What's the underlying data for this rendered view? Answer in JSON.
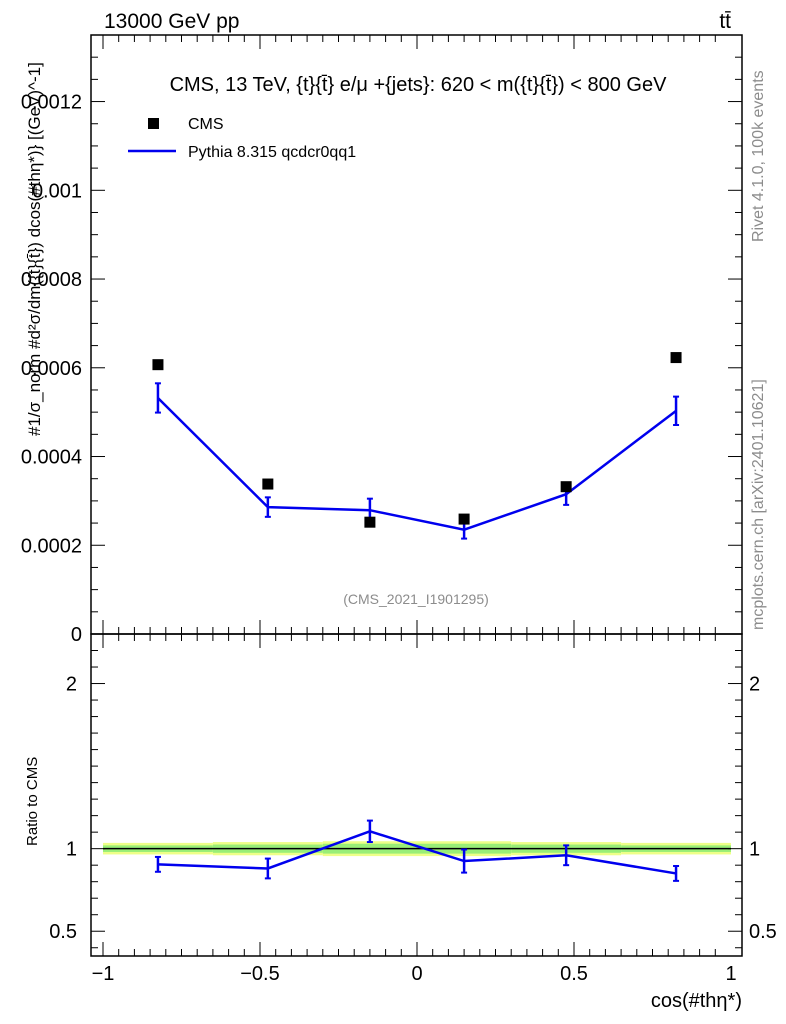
{
  "header": {
    "energy_label": "13000 GeV pp",
    "process_label": "tt̄"
  },
  "side_labels": {
    "rivet": "Rivet 4.1.0,  100k events",
    "source": "mcplots.cern.ch [arXiv:2401.10621]"
  },
  "watermark": "(CMS_2021_I1901295)",
  "colors": {
    "mc_line": "#0000ee",
    "data_marker": "#000000",
    "band_inner": "#99ee77",
    "band_outer": "#eeff88"
  },
  "chart_data": [
    {
      "type": "scatter",
      "panel": "main",
      "title": "CMS, 13 TeV, {t}{t̄} e/μ +{jets}: 620 < m({t}{t̄}) < 800 GeV",
      "xlabel": "cos(#thη*)",
      "ylabel": "#1/σ_norm #d²σ/dm({t}{t̄}) dcos(#thη*)} [(GeV)^-1]",
      "xlim": [
        -1.0,
        1.0
      ],
      "ylim": [
        0.0,
        0.00135
      ],
      "grid": false,
      "legend_position": "top-left",
      "yticks": [
        {
          "value": 0.0,
          "label": "0"
        },
        {
          "value": 0.0002,
          "label": "0.0002"
        },
        {
          "value": 0.0004,
          "label": "0.0004"
        },
        {
          "value": 0.0006,
          "label": "0.0006"
        },
        {
          "value": 0.0008,
          "label": "0.0008"
        },
        {
          "value": 0.001,
          "label": "0.001"
        },
        {
          "value": 0.0012,
          "label": "0.0012"
        }
      ],
      "x": [
        -0.825,
        -0.475,
        -0.15,
        0.15,
        0.475,
        0.825
      ],
      "series": [
        {
          "name": "CMS",
          "style": "markers",
          "values": [
            0.000607,
            0.000338,
            0.000252,
            0.000259,
            0.000332,
            0.000623
          ]
        },
        {
          "name": "Pythia 8.315 qcdcr0qq1",
          "style": "line",
          "values": [
            0.000532,
            0.000286,
            0.000279,
            0.000235,
            0.000315,
            0.000503
          ],
          "errors": [
            3.3e-05,
            2.2e-05,
            2.6e-05,
            2e-05,
            2.4e-05,
            3.2e-05
          ]
        }
      ]
    },
    {
      "type": "line",
      "panel": "ratio",
      "ylabel": "Ratio to CMS",
      "xlabel": "cos(#thη*)",
      "xlim": [
        -1.0,
        1.0
      ],
      "ylim": [
        0.35,
        2.3
      ],
      "grid": false,
      "xticks": [
        {
          "value": -1.0,
          "label": "−1"
        },
        {
          "value": -0.5,
          "label": "−0.5"
        },
        {
          "value": 0.0,
          "label": "0"
        },
        {
          "value": 0.5,
          "label": "0.5"
        },
        {
          "value": 1.0,
          "label": "1"
        }
      ],
      "yticks": [
        {
          "value": 0.5,
          "label": "0.5"
        },
        {
          "value": 1.0,
          "label": "1"
        },
        {
          "value": 2.0,
          "label": "2"
        }
      ],
      "x": [
        -0.825,
        -0.475,
        -0.15,
        0.15,
        0.475,
        0.825
      ],
      "series": [
        {
          "name": "Pythia 8.315 qcdcr0qq1 / CMS",
          "values": [
            0.905,
            0.88,
            1.105,
            0.925,
            0.96,
            0.85
          ],
          "errors": [
            0.045,
            0.06,
            0.065,
            0.07,
            0.06,
            0.045
          ]
        }
      ],
      "bands": [
        {
          "x_from": -1.0,
          "x_to": -0.65,
          "inner": 0.02,
          "outer": 0.035
        },
        {
          "x_from": -0.65,
          "x_to": -0.3,
          "inner": 0.025,
          "outer": 0.04
        },
        {
          "x_from": -0.3,
          "x_to": 0.0,
          "inner": 0.03,
          "outer": 0.045
        },
        {
          "x_from": 0.0,
          "x_to": 0.3,
          "inner": 0.03,
          "outer": 0.045
        },
        {
          "x_from": 0.3,
          "x_to": 0.65,
          "inner": 0.025,
          "outer": 0.04
        },
        {
          "x_from": 0.65,
          "x_to": 1.0,
          "inner": 0.02,
          "outer": 0.035
        }
      ]
    }
  ]
}
